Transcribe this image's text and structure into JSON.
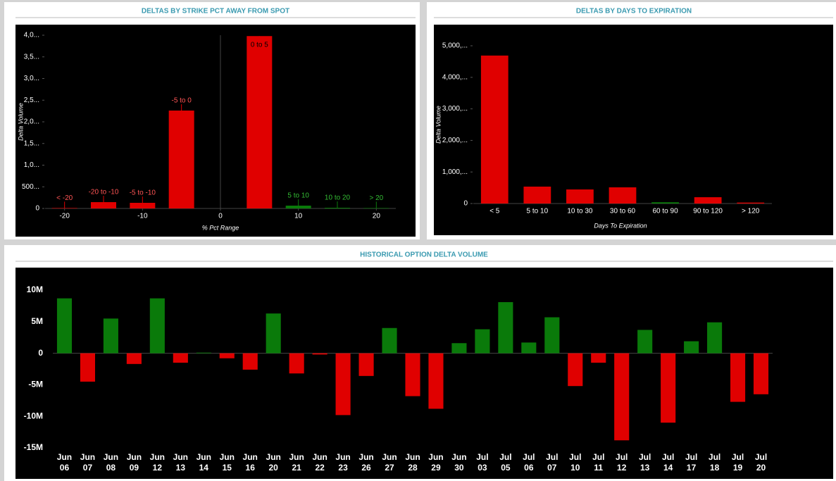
{
  "chart_data": [
    {
      "type": "bar",
      "title": "DELTAS BY STRIKE PCT AWAY FROM SPOT",
      "x_label": "% Pct Range",
      "y_label": "Delta Volume",
      "categories": [
        "< -20",
        "-20 to -10",
        "-5 to -10",
        "-5 to 0",
        "0 to 5",
        "5 to 10",
        "10 to 20",
        "> 20"
      ],
      "x": [
        -20,
        -15,
        -10,
        -5,
        5,
        10,
        15,
        20
      ],
      "values": [
        10000,
        146000,
        130000,
        2260000,
        3980000,
        65000,
        16000,
        10000
      ],
      "colors": [
        "#e00000",
        "#e00000",
        "#e00000",
        "#e00000",
        "#e00000",
        "#0a7a0a",
        "#0a7a0a",
        "#0a7a0a"
      ],
      "xlim": [
        -22.5,
        22.5
      ],
      "xticks": [
        -20,
        -10,
        0,
        10,
        20
      ],
      "ylim": [
        0,
        4000000
      ],
      "yticks": [
        0,
        {
          "value": 500000,
          "label": "500..."
        },
        {
          "value": 1000000,
          "label": "1,0..."
        },
        {
          "value": 1500000,
          "label": "1,5..."
        },
        {
          "value": 2000000,
          "label": "2,0..."
        },
        {
          "value": 2500000,
          "label": "2,5..."
        },
        {
          "value": 3000000,
          "label": "3,0..."
        },
        {
          "value": 3500000,
          "label": "3,5..."
        },
        {
          "value": 4000000,
          "label": "4,0..."
        }
      ]
    },
    {
      "type": "category-bar",
      "title": "DELTAS BY DAYS TO EXPIRATION",
      "x_label": "Days To Expiration",
      "y_label": "Delta Volume",
      "categories": [
        "< 5",
        "5 to 10",
        "10 to 30",
        "30 to 60",
        "60 to 90",
        "90 to 120",
        "> 120"
      ],
      "values": [
        4690000,
        536000,
        446000,
        513000,
        40000,
        200000,
        30000
      ],
      "colors": [
        "#e00000",
        "#e00000",
        "#e00000",
        "#e00000",
        "#0a7a0a",
        "#e00000",
        "#e00000"
      ],
      "ylim": [
        0,
        5000000
      ],
      "yticks": [
        0,
        {
          "value": 1000000,
          "label": "1,000,..."
        },
        {
          "value": 2000000,
          "label": "2,000,..."
        },
        {
          "value": 3000000,
          "label": "3,000,..."
        },
        {
          "value": 4000000,
          "label": "4,000,..."
        },
        {
          "value": 5000000,
          "label": "5,000,..."
        }
      ]
    },
    {
      "type": "signed-bar",
      "title": "HISTORICAL OPTION DELTA VOLUME",
      "categories": [
        [
          "Jun",
          "06"
        ],
        [
          "Jun",
          "07"
        ],
        [
          "Jun",
          "08"
        ],
        [
          "Jun",
          "09"
        ],
        [
          "Jun",
          "12"
        ],
        [
          "Jun",
          "13"
        ],
        [
          "Jun",
          "14"
        ],
        [
          "Jun",
          "15"
        ],
        [
          "Jun",
          "16"
        ],
        [
          "Jun",
          "20"
        ],
        [
          "Jun",
          "21"
        ],
        [
          "Jun",
          "22"
        ],
        [
          "Jun",
          "23"
        ],
        [
          "Jun",
          "26"
        ],
        [
          "Jun",
          "27"
        ],
        [
          "Jun",
          "28"
        ],
        [
          "Jun",
          "29"
        ],
        [
          "Jun",
          "30"
        ],
        [
          "Jul",
          "03"
        ],
        [
          "Jul",
          "05"
        ],
        [
          "Jul",
          "06"
        ],
        [
          "Jul",
          "07"
        ],
        [
          "Jul",
          "10"
        ],
        [
          "Jul",
          "11"
        ],
        [
          "Jul",
          "12"
        ],
        [
          "Jul",
          "13"
        ],
        [
          "Jul",
          "14"
        ],
        [
          "Jul",
          "17"
        ],
        [
          "Jul",
          "18"
        ],
        [
          "Jul",
          "19"
        ],
        [
          "Jul",
          "20"
        ]
      ],
      "values": [
        8700000,
        -4500000,
        5500000,
        -1700000,
        8700000,
        -1500000,
        100000,
        -800000,
        -2600000,
        6300000,
        -3200000,
        -200000,
        -9800000,
        -3600000,
        4000000,
        -6800000,
        -8800000,
        1600000,
        3800000,
        8100000,
        1700000,
        5700000,
        -5200000,
        -1500000,
        -13800000,
        3700000,
        -11000000,
        1900000,
        4900000,
        -7700000,
        -6500000
      ],
      "positive_color": "#0a7a0a",
      "negative_color": "#e00000",
      "ylim": [
        -15000000,
        10000000
      ],
      "yticks": [
        {
          "value": 10000000,
          "label": "10M"
        },
        {
          "value": 5000000,
          "label": "5M"
        },
        0,
        {
          "value": -5000000,
          "label": "-5M"
        },
        {
          "value": -10000000,
          "label": "-10M"
        },
        {
          "value": -15000000,
          "label": "-15M"
        }
      ]
    }
  ]
}
